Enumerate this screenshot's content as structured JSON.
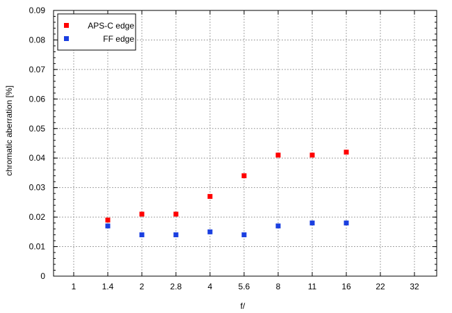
{
  "chart_data": {
    "type": "scatter",
    "title": "",
    "xlabel": "f/",
    "ylabel": "chromatic  aberration [%]",
    "categories": [
      "1",
      "1.4",
      "2",
      "2.8",
      "4",
      "5.6",
      "8",
      "11",
      "16",
      "22",
      "32"
    ],
    "yticks": [
      "0",
      "0.01",
      "0.02",
      "0.03",
      "0.04",
      "0.05",
      "0.06",
      "0.07",
      "0.08",
      "0.09"
    ],
    "ylim": [
      0,
      0.09
    ],
    "grid": true,
    "legend_position": "top-left",
    "series": [
      {
        "name": "APS-C edge",
        "color": "#ff0000",
        "x": [
          "1.4",
          "2",
          "2.8",
          "4",
          "5.6",
          "8",
          "11",
          "16"
        ],
        "values": [
          0.019,
          0.021,
          0.021,
          0.027,
          0.034,
          0.041,
          0.041,
          0.042
        ]
      },
      {
        "name": "FF edge",
        "color": "#1a3fe0",
        "x": [
          "1.4",
          "2",
          "2.8",
          "4",
          "5.6",
          "8",
          "11",
          "16"
        ],
        "values": [
          0.017,
          0.014,
          0.014,
          0.015,
          0.014,
          0.017,
          0.018,
          0.018
        ]
      }
    ]
  }
}
